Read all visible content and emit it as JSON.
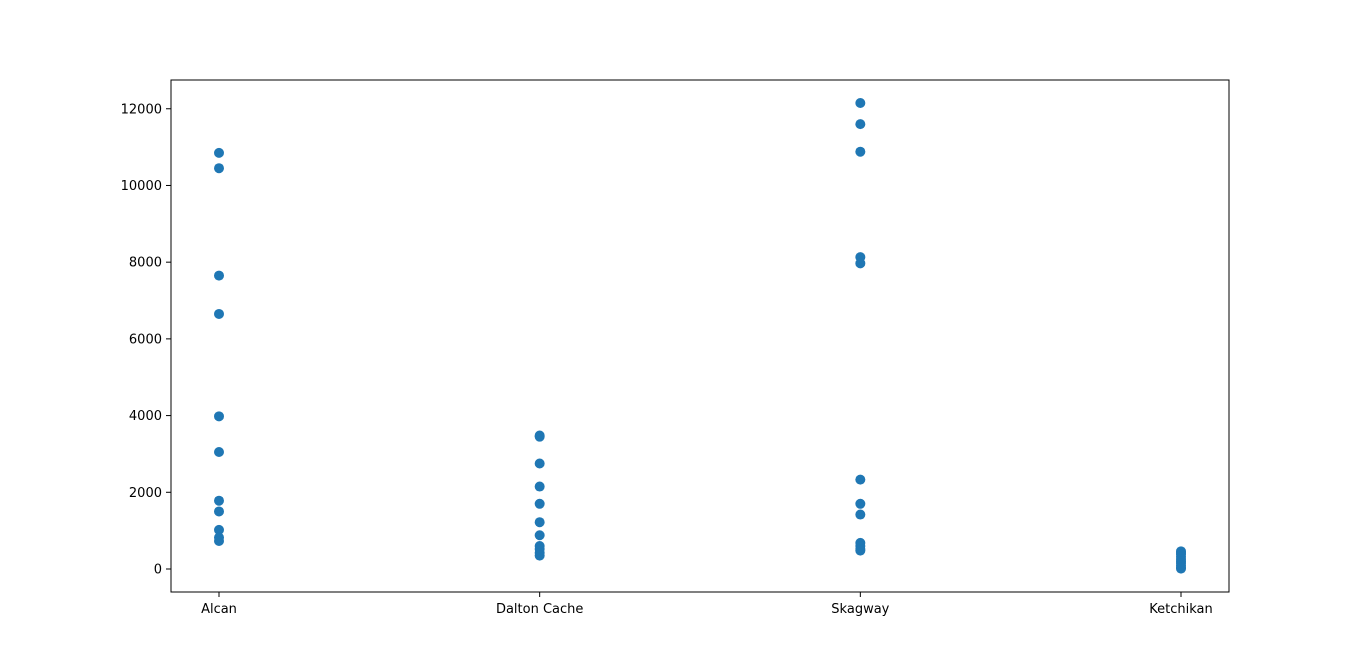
{
  "chart_data": {
    "type": "scatter",
    "title": "",
    "xlabel": "",
    "ylabel": "",
    "categories": [
      "Alcan",
      "Dalton Cache",
      "Skagway",
      "Ketchikan"
    ],
    "ylim": [
      -600,
      12750
    ],
    "yticks": [
      0,
      2000,
      4000,
      6000,
      8000,
      10000,
      12000
    ],
    "grid": false,
    "marker_color": "#1f77b4",
    "points": [
      {
        "x": "Alcan",
        "values": [
          10850,
          10450,
          7650,
          6650,
          3980,
          3050,
          1780,
          1500,
          1020,
          820,
          730
        ]
      },
      {
        "x": "Dalton Cache",
        "values": [
          3480,
          3450,
          2750,
          2150,
          1700,
          1220,
          880,
          600,
          520,
          420,
          350
        ]
      },
      {
        "x": "Skagway",
        "values": [
          12150,
          11600,
          10880,
          8130,
          7970,
          2330,
          1700,
          1420,
          680,
          600,
          520,
          480
        ]
      },
      {
        "x": "Ketchikan",
        "values": [
          460,
          420,
          380,
          320,
          260,
          200,
          150,
          90,
          40,
          10
        ]
      }
    ]
  }
}
